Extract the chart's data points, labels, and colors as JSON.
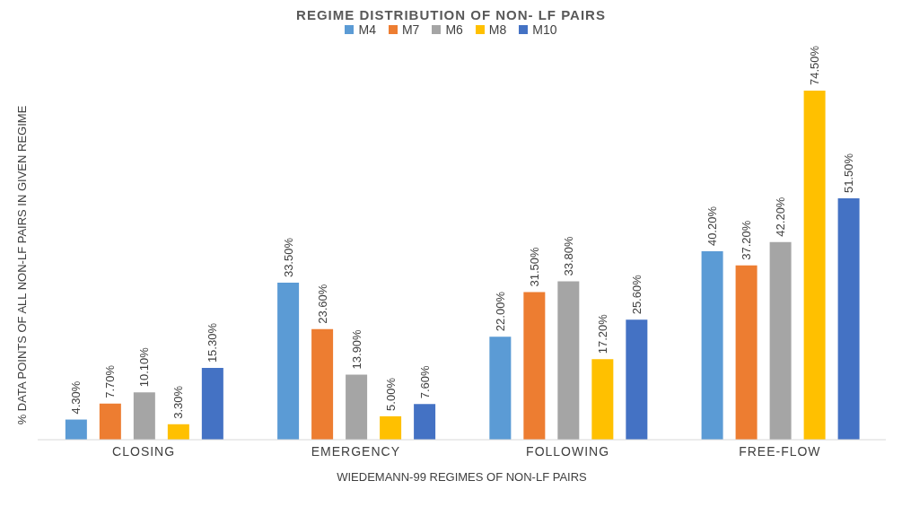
{
  "chart_data": {
    "type": "bar",
    "title": "REGIME DISTRIBUTION OF NON- LF PAIRS",
    "xlabel": "WIEDEMANN-99 REGIMES OF NON-LF PAIRS",
    "ylabel": "% DATA POINTS OF ALL NON-LF PAIRS IN GIVEN REGIME",
    "categories": [
      "CLOSING",
      "EMERGENCY",
      "FOLLOWING",
      "FREE-FLOW"
    ],
    "legend": "top",
    "series": [
      {
        "name": "M4",
        "color": "#5b9bd5",
        "values": [
          4.3,
          33.5,
          22.0,
          40.2
        ],
        "value_labels": [
          "4.30%",
          "33.50%",
          "22.00%",
          "40.20%"
        ]
      },
      {
        "name": "M7",
        "color": "#ed7d31",
        "values": [
          7.7,
          23.6,
          31.5,
          37.2
        ],
        "value_labels": [
          "7.70%",
          "23.60%",
          "31.50%",
          "37.20%"
        ]
      },
      {
        "name": "M6",
        "color": "#a5a5a5",
        "values": [
          10.1,
          13.9,
          33.8,
          42.2
        ],
        "value_labels": [
          "10.10%",
          "13.90%",
          "33.80%",
          "42.20%"
        ]
      },
      {
        "name": "M8",
        "color": "#ffc000",
        "values": [
          3.3,
          5.0,
          17.2,
          74.5
        ],
        "value_labels": [
          "3.30%",
          "5.00%",
          "17.20%",
          "74.50%"
        ]
      },
      {
        "name": "M10",
        "color": "#4472c4",
        "values": [
          15.3,
          7.6,
          25.6,
          51.5
        ],
        "value_labels": [
          "15.30%",
          "7.60%",
          "25.60%",
          "51.50%"
        ]
      }
    ]
  }
}
